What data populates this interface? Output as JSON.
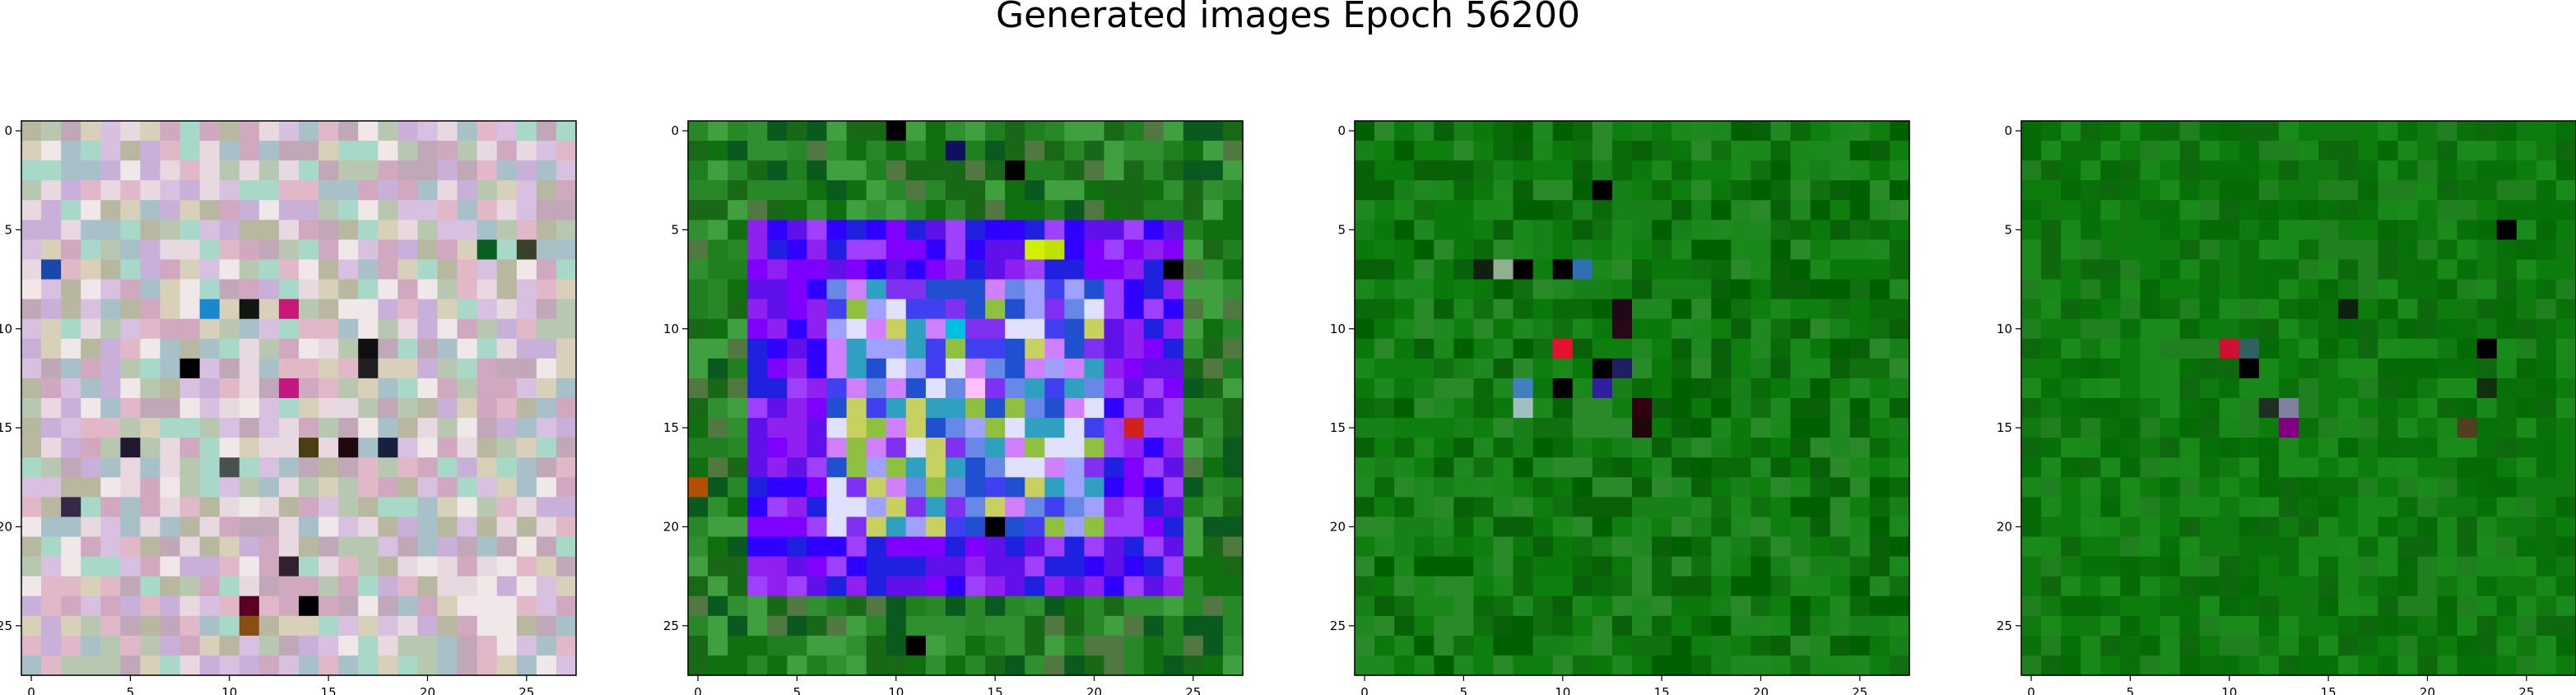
{
  "figure": {
    "title": "Generated images Epoch 56200"
  },
  "chart_data": [
    {
      "type": "heatmap",
      "title": "",
      "xlabel": "",
      "ylabel": "",
      "grid_size": [
        28,
        28
      ],
      "xlim": [
        -0.5,
        27.5
      ],
      "ylim": [
        27.5,
        -0.5
      ],
      "x_ticks": [
        0,
        5,
        10,
        15,
        20,
        25
      ],
      "y_ticks": [
        0,
        5,
        10,
        15,
        20,
        25
      ],
      "grid": false,
      "palette": [
        "#e0b8c8",
        "#c8b0d8",
        "#d8d0b8",
        "#b8c8b0",
        "#e8d8e0",
        "#a8c0c8",
        "#d0a8c0",
        "#c0a8b8",
        "#f0e8e8",
        "#b8b8a0",
        "#d8c0e0",
        "#a8d8c8"
      ],
      "accents": [
        {
          "row": 7,
          "col": 1,
          "color": "#1848a8"
        },
        {
          "row": 9,
          "col": 9,
          "color": "#1888d0"
        },
        {
          "row": 9,
          "col": 11,
          "color": "#101810"
        },
        {
          "row": 9,
          "col": 13,
          "color": "#c81878"
        },
        {
          "row": 11,
          "col": 17,
          "color": "#101010"
        },
        {
          "row": 12,
          "col": 8,
          "color": "#000000"
        },
        {
          "row": 12,
          "col": 17,
          "color": "#202020"
        },
        {
          "row": 13,
          "col": 13,
          "color": "#c01880"
        },
        {
          "row": 16,
          "col": 5,
          "color": "#201830"
        },
        {
          "row": 16,
          "col": 14,
          "color": "#484010"
        },
        {
          "row": 16,
          "col": 16,
          "color": "#200810"
        },
        {
          "row": 16,
          "col": 18,
          "color": "#182040"
        },
        {
          "row": 17,
          "col": 10,
          "color": "#485050"
        },
        {
          "row": 19,
          "col": 2,
          "color": "#382848"
        },
        {
          "row": 22,
          "col": 13,
          "color": "#302030"
        },
        {
          "row": 24,
          "col": 14,
          "color": "#000000"
        },
        {
          "row": 24,
          "col": 11,
          "color": "#580020"
        },
        {
          "row": 25,
          "col": 11,
          "color": "#885010"
        },
        {
          "row": 6,
          "col": 23,
          "color": "#086020"
        },
        {
          "row": 6,
          "col": 25,
          "color": "#384028"
        }
      ]
    },
    {
      "type": "heatmap",
      "title": "",
      "xlabel": "",
      "ylabel": "",
      "grid_size": [
        28,
        28
      ],
      "xlim": [
        -0.5,
        27.5
      ],
      "ylim": [
        27.5,
        -0.5
      ],
      "x_ticks": [
        0,
        5,
        10,
        15,
        20,
        25
      ],
      "y_ticks": [
        0,
        5,
        10,
        15,
        20,
        25
      ],
      "grid": false,
      "background_palette": [
        "#208020",
        "#107010",
        "#309030",
        "#186818",
        "#40a040",
        "#0a5a20",
        "#288828",
        "#507840"
      ],
      "square": {
        "row_start": 5,
        "row_end": 23,
        "col_start": 3,
        "col_end": 24,
        "inner_row_start": 8,
        "inner_row_end": 20,
        "inner_col_start": 7,
        "inner_col_end": 20
      },
      "square_palette": [
        "#8000ff",
        "#3000ff",
        "#9020f0",
        "#2020e0",
        "#a040ff",
        "#6010e8"
      ],
      "inner_palette": [
        "#8030f0",
        "#6888e8",
        "#c8d060",
        "#30a0c0",
        "#d080ff",
        "#4040f0",
        "#90c040",
        "#a0a0ff",
        "#2050d0",
        "#e0e0ff"
      ],
      "accents": [
        {
          "row": 0,
          "col": 10,
          "color": "#000000"
        },
        {
          "row": 1,
          "col": 13,
          "color": "#101060"
        },
        {
          "row": 2,
          "col": 16,
          "color": "#000000"
        },
        {
          "row": 6,
          "col": 17,
          "color": "#d0f000"
        },
        {
          "row": 6,
          "col": 18,
          "color": "#c0e000"
        },
        {
          "row": 7,
          "col": 24,
          "color": "#000000"
        },
        {
          "row": 10,
          "col": 13,
          "color": "#00c0e0"
        },
        {
          "row": 13,
          "col": 14,
          "color": "#ffc0ff"
        },
        {
          "row": 15,
          "col": 22,
          "color": "#d02020"
        },
        {
          "row": 18,
          "col": 0,
          "color": "#b05000"
        },
        {
          "row": 20,
          "col": 15,
          "color": "#000000"
        },
        {
          "row": 26,
          "col": 11,
          "color": "#000000"
        }
      ]
    },
    {
      "type": "heatmap",
      "title": "",
      "xlabel": "",
      "ylabel": "",
      "grid_size": [
        28,
        28
      ],
      "xlim": [
        -0.5,
        27.5
      ],
      "ylim": [
        27.5,
        -0.5
      ],
      "x_ticks": [
        0,
        5,
        10,
        15,
        20,
        25
      ],
      "y_ticks": [
        0,
        5,
        10,
        15,
        20,
        25
      ],
      "grid": false,
      "palette": [
        "#0a780a",
        "#107010",
        "#1a881a",
        "#086008",
        "#208820",
        "#0a6a0a",
        "#188018",
        "#0e7e0e",
        "#2a8a2a",
        "#006000"
      ],
      "accents": [
        {
          "row": 3,
          "col": 12,
          "color": "#000000"
        },
        {
          "row": 7,
          "col": 6,
          "color": "#102010"
        },
        {
          "row": 7,
          "col": 7,
          "color": "#90b090"
        },
        {
          "row": 7,
          "col": 8,
          "color": "#000000"
        },
        {
          "row": 7,
          "col": 10,
          "color": "#000000"
        },
        {
          "row": 7,
          "col": 11,
          "color": "#3070b0"
        },
        {
          "row": 9,
          "col": 13,
          "color": "#200818"
        },
        {
          "row": 11,
          "col": 10,
          "color": "#e81030"
        },
        {
          "row": 12,
          "col": 13,
          "color": "#202060"
        },
        {
          "row": 13,
          "col": 8,
          "color": "#4080c0"
        },
        {
          "row": 13,
          "col": 10,
          "color": "#000000"
        },
        {
          "row": 13,
          "col": 12,
          "color": "#3020a0"
        },
        {
          "row": 14,
          "col": 8,
          "color": "#a0c0c0"
        },
        {
          "row": 14,
          "col": 14,
          "color": "#300010"
        },
        {
          "row": 15,
          "col": 14,
          "color": "#200808"
        },
        {
          "row": 10,
          "col": 13,
          "color": "#280818"
        },
        {
          "row": 12,
          "col": 12,
          "color": "#000000"
        }
      ]
    },
    {
      "type": "heatmap",
      "title": "",
      "xlabel": "",
      "ylabel": "",
      "grid_size": [
        28,
        28
      ],
      "xlim": [
        -0.5,
        27.5
      ],
      "ylim": [
        27.5,
        -0.5
      ],
      "x_ticks": [
        0,
        5,
        10,
        15,
        20,
        25
      ],
      "y_ticks": [
        0,
        5,
        10,
        15,
        20,
        25
      ],
      "grid": false,
      "palette": [
        "#107a10",
        "#0a700a",
        "#1a8a1a",
        "#087008",
        "#208020",
        "#0e680e",
        "#188818",
        "#0c7c0c",
        "#066a06"
      ],
      "accents": [
        {
          "row": 5,
          "col": 24,
          "color": "#000000"
        },
        {
          "row": 9,
          "col": 16,
          "color": "#102010"
        },
        {
          "row": 11,
          "col": 10,
          "color": "#d01030"
        },
        {
          "row": 11,
          "col": 11,
          "color": "#306060"
        },
        {
          "row": 12,
          "col": 11,
          "color": "#000000"
        },
        {
          "row": 14,
          "col": 13,
          "color": "#8080a0"
        },
        {
          "row": 14,
          "col": 12,
          "color": "#203020"
        },
        {
          "row": 15,
          "col": 13,
          "color": "#800080"
        },
        {
          "row": 15,
          "col": 22,
          "color": "#504020"
        },
        {
          "row": 13,
          "col": 23,
          "color": "#103010"
        },
        {
          "row": 11,
          "col": 23,
          "color": "#000000"
        }
      ]
    }
  ]
}
